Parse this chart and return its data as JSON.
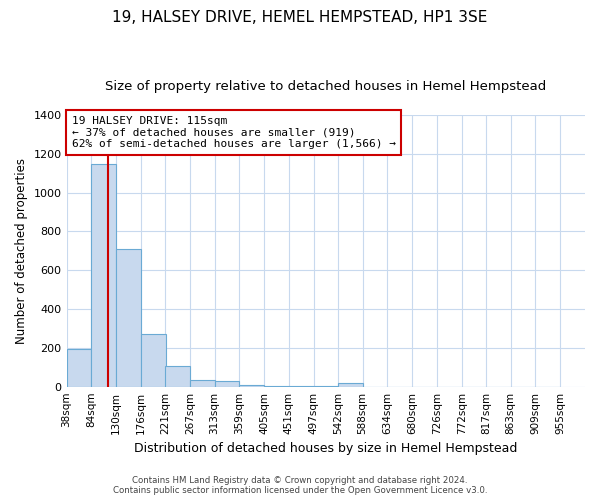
{
  "title": "19, HALSEY DRIVE, HEMEL HEMPSTEAD, HP1 3SE",
  "subtitle": "Size of property relative to detached houses in Hemel Hempstead",
  "xlabel": "Distribution of detached houses by size in Hemel Hempstead",
  "ylabel": "Number of detached properties",
  "footnote1": "Contains HM Land Registry data © Crown copyright and database right 2024.",
  "footnote2": "Contains public sector information licensed under the Open Government Licence v3.0.",
  "bin_edges": [
    38,
    84,
    130,
    176,
    221,
    267,
    313,
    359,
    405,
    451,
    497,
    542,
    588,
    634,
    680,
    726,
    772,
    817,
    863,
    909,
    955
  ],
  "bar_heights": [
    195,
    1148,
    710,
    270,
    108,
    35,
    28,
    10,
    5,
    5,
    5,
    18,
    0,
    0,
    0,
    0,
    0,
    0,
    0,
    0
  ],
  "bar_color": "#c8d9ee",
  "bar_edge_color": "#6aaad4",
  "property_size": 115,
  "property_line_color": "#cc0000",
  "annotation_text": "19 HALSEY DRIVE: 115sqm\n← 37% of detached houses are smaller (919)\n62% of semi-detached houses are larger (1,566) →",
  "annotation_box_color": "#ffffff",
  "annotation_box_edge_color": "#cc0000",
  "ylim": [
    0,
    1400
  ],
  "yticks": [
    0,
    200,
    400,
    600,
    800,
    1000,
    1200,
    1400
  ],
  "background_color": "#ffffff",
  "axes_background_color": "#ffffff",
  "grid_color": "#c8d9ee",
  "title_fontsize": 11,
  "subtitle_fontsize": 9.5,
  "tick_fontsize": 8,
  "ylabel_fontsize": 8.5,
  "xlabel_fontsize": 9
}
